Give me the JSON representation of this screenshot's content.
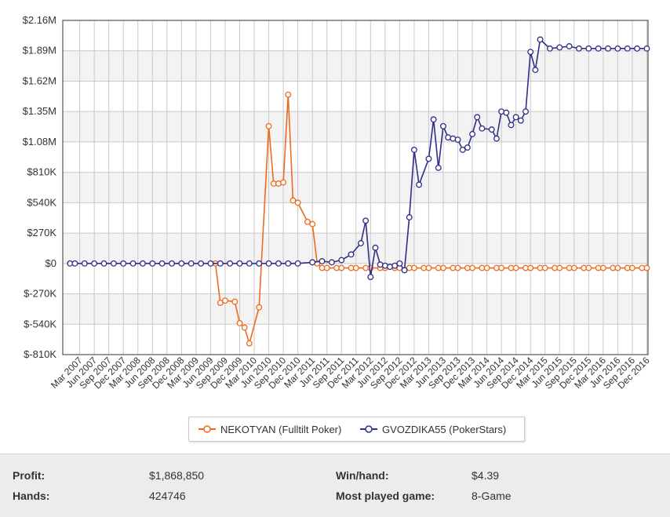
{
  "chart_data": {
    "type": "line",
    "y_tick_labels": [
      "$2.16M",
      "$1.89M",
      "$1.62M",
      "$1.35M",
      "$1.08M",
      "$810K",
      "$540K",
      "$270K",
      "$0",
      "$-270K",
      "$-540K",
      "$-810K"
    ],
    "ylim": [
      -810000,
      2160000
    ],
    "x_tick_labels": [
      "Mar 2007",
      "Jun 2007",
      "Sep 2007",
      "Dec 2007",
      "Mar 2008",
      "Jun 2008",
      "Sep 2008",
      "Dec 2008",
      "Mar 2009",
      "Jun 2009",
      "Sep 2009",
      "Dec 2009",
      "Mar 2010",
      "Jun 2010",
      "Sep 2010",
      "Dec 2010",
      "Mar 2011",
      "Jun 2011",
      "Sep 2011",
      "Dec 2011",
      "Mar 2012",
      "Jun 2012",
      "Sep 2012",
      "Dec 2012",
      "Mar 2013",
      "Jun 2013",
      "Sep 2013",
      "Dec 2013",
      "Mar 2014",
      "Jun 2014",
      "Sep 2014",
      "Dec 2014",
      "Mar 2015",
      "Jun 2015",
      "Sep 2015",
      "Dec 2015",
      "Mar 2016",
      "Jun 2016",
      "Sep 2016",
      "Dec 2016"
    ],
    "grid": true,
    "legend_position": "bottom",
    "series": [
      {
        "name": "NEKOTYAN (Fulltilt Poker)",
        "color": "#ee6a1c",
        "points": [
          [
            "2009-07-01",
            0
          ],
          [
            "2009-08-01",
            -350000
          ],
          [
            "2009-09-01",
            -330000
          ],
          [
            "2009-11-01",
            -340000
          ],
          [
            "2009-12-01",
            -530000
          ],
          [
            "2010-01-01",
            -570000
          ],
          [
            "2010-02-01",
            -710000
          ],
          [
            "2010-04-01",
            -390000
          ],
          [
            "2010-06-01",
            1220000
          ],
          [
            "2010-07-01",
            710000
          ],
          [
            "2010-08-01",
            710000
          ],
          [
            "2010-09-01",
            720000
          ],
          [
            "2010-10-01",
            1500000
          ],
          [
            "2010-11-01",
            560000
          ],
          [
            "2010-12-01",
            540000
          ],
          [
            "2011-02-01",
            370000
          ],
          [
            "2011-03-01",
            350000
          ],
          [
            "2011-04-01",
            0
          ],
          [
            "2011-05-01",
            -40000
          ],
          [
            "2011-06-01",
            -40000
          ],
          [
            "2011-08-01",
            -40000
          ],
          [
            "2011-09-01",
            -40000
          ],
          [
            "2011-11-01",
            -40000
          ],
          [
            "2011-12-01",
            -40000
          ],
          [
            "2012-02-01",
            -40000
          ],
          [
            "2012-03-01",
            -40000
          ],
          [
            "2012-05-01",
            -40000
          ],
          [
            "2012-06-01",
            -40000
          ],
          [
            "2012-08-01",
            -40000
          ],
          [
            "2012-09-01",
            -40000
          ],
          [
            "2012-11-01",
            -40000
          ],
          [
            "2012-12-01",
            -40000
          ],
          [
            "2013-02-01",
            -40000
          ],
          [
            "2013-03-01",
            -40000
          ],
          [
            "2013-05-01",
            -40000
          ],
          [
            "2013-06-01",
            -40000
          ],
          [
            "2013-08-01",
            -40000
          ],
          [
            "2013-09-01",
            -40000
          ],
          [
            "2013-11-01",
            -40000
          ],
          [
            "2013-12-01",
            -40000
          ],
          [
            "2014-02-01",
            -40000
          ],
          [
            "2014-03-01",
            -40000
          ],
          [
            "2014-05-01",
            -40000
          ],
          [
            "2014-06-01",
            -40000
          ],
          [
            "2014-08-01",
            -40000
          ],
          [
            "2014-09-01",
            -40000
          ],
          [
            "2014-11-01",
            -40000
          ],
          [
            "2014-12-01",
            -40000
          ],
          [
            "2015-02-01",
            -40000
          ],
          [
            "2015-03-01",
            -40000
          ],
          [
            "2015-05-01",
            -40000
          ],
          [
            "2015-06-01",
            -40000
          ],
          [
            "2015-08-01",
            -40000
          ],
          [
            "2015-09-01",
            -40000
          ],
          [
            "2015-11-01",
            -40000
          ],
          [
            "2015-12-01",
            -40000
          ],
          [
            "2016-02-01",
            -40000
          ],
          [
            "2016-03-01",
            -40000
          ],
          [
            "2016-05-01",
            -40000
          ],
          [
            "2016-06-01",
            -40000
          ],
          [
            "2016-08-01",
            -40000
          ],
          [
            "2016-09-01",
            -40000
          ],
          [
            "2016-11-01",
            -40000
          ],
          [
            "2016-12-01",
            -40000
          ]
        ]
      },
      {
        "name": "GVOZDIKA55 (PokerStars)",
        "color": "#2e2f86",
        "points": [
          [
            "2007-01-01",
            0
          ],
          [
            "2007-02-01",
            0
          ],
          [
            "2007-04-01",
            0
          ],
          [
            "2007-06-01",
            0
          ],
          [
            "2007-08-01",
            0
          ],
          [
            "2007-10-01",
            0
          ],
          [
            "2007-12-01",
            0
          ],
          [
            "2008-02-01",
            0
          ],
          [
            "2008-04-01",
            0
          ],
          [
            "2008-06-01",
            0
          ],
          [
            "2008-08-01",
            0
          ],
          [
            "2008-10-01",
            0
          ],
          [
            "2008-12-01",
            0
          ],
          [
            "2009-02-01",
            0
          ],
          [
            "2009-04-01",
            0
          ],
          [
            "2009-06-01",
            0
          ],
          [
            "2009-08-01",
            0
          ],
          [
            "2009-10-01",
            0
          ],
          [
            "2009-12-01",
            0
          ],
          [
            "2010-02-01",
            0
          ],
          [
            "2010-04-01",
            0
          ],
          [
            "2010-06-01",
            0
          ],
          [
            "2010-08-01",
            0
          ],
          [
            "2010-10-01",
            0
          ],
          [
            "2010-12-01",
            0
          ],
          [
            "2011-03-01",
            10000
          ],
          [
            "2011-05-01",
            20000
          ],
          [
            "2011-07-01",
            10000
          ],
          [
            "2011-09-01",
            30000
          ],
          [
            "2011-11-01",
            80000
          ],
          [
            "2012-01-01",
            180000
          ],
          [
            "2012-02-01",
            380000
          ],
          [
            "2012-03-01",
            -120000
          ],
          [
            "2012-04-01",
            140000
          ],
          [
            "2012-05-01",
            -10000
          ],
          [
            "2012-06-01",
            -20000
          ],
          [
            "2012-07-01",
            -30000
          ],
          [
            "2012-08-01",
            -20000
          ],
          [
            "2012-09-01",
            0
          ],
          [
            "2012-10-01",
            -60000
          ],
          [
            "2012-11-01",
            410000
          ],
          [
            "2012-12-01",
            1010000
          ],
          [
            "2013-01-01",
            700000
          ],
          [
            "2013-03-01",
            930000
          ],
          [
            "2013-04-01",
            1280000
          ],
          [
            "2013-05-01",
            850000
          ],
          [
            "2013-06-01",
            1220000
          ],
          [
            "2013-07-01",
            1120000
          ],
          [
            "2013-08-01",
            1110000
          ],
          [
            "2013-09-01",
            1100000
          ],
          [
            "2013-10-01",
            1010000
          ],
          [
            "2013-11-01",
            1030000
          ],
          [
            "2013-12-01",
            1150000
          ],
          [
            "2014-01-01",
            1300000
          ],
          [
            "2014-02-01",
            1200000
          ],
          [
            "2014-04-01",
            1190000
          ],
          [
            "2014-05-01",
            1110000
          ],
          [
            "2014-06-01",
            1350000
          ],
          [
            "2014-07-01",
            1340000
          ],
          [
            "2014-08-01",
            1230000
          ],
          [
            "2014-09-01",
            1300000
          ],
          [
            "2014-10-01",
            1270000
          ],
          [
            "2014-11-01",
            1350000
          ],
          [
            "2014-12-01",
            1880000
          ],
          [
            "2015-01-01",
            1720000
          ],
          [
            "2015-02-01",
            1990000
          ],
          [
            "2015-04-01",
            1910000
          ],
          [
            "2015-06-01",
            1920000
          ],
          [
            "2015-08-01",
            1930000
          ],
          [
            "2015-10-01",
            1910000
          ],
          [
            "2015-12-01",
            1910000
          ],
          [
            "2016-02-01",
            1910000
          ],
          [
            "2016-04-01",
            1910000
          ],
          [
            "2016-06-01",
            1910000
          ],
          [
            "2016-08-01",
            1910000
          ],
          [
            "2016-10-01",
            1910000
          ],
          [
            "2016-12-01",
            1910000
          ]
        ]
      }
    ]
  },
  "stats": {
    "profit_label": "Profit:",
    "profit_value": "$1,868,850",
    "hands_label": "Hands:",
    "hands_value": "424746",
    "winhand_label": "Win/hand:",
    "winhand_value": "$4.39",
    "game_label": "Most played game:",
    "game_value": "8-Game"
  }
}
